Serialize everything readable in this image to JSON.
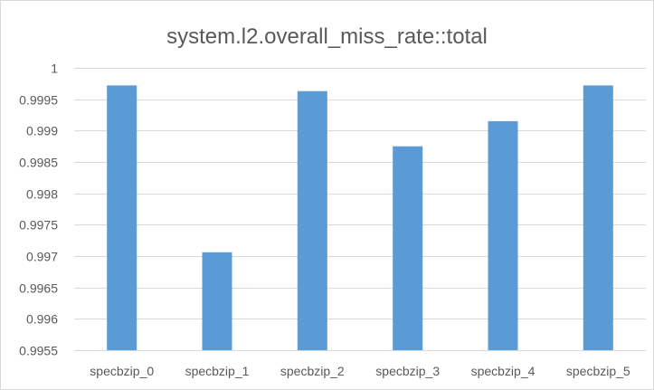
{
  "chart_data": {
    "type": "bar",
    "title": "system.l2.overall_miss_rate::total",
    "xlabel": "",
    "ylabel": "",
    "categories": [
      "specbzip_0",
      "specbzip_1",
      "specbzip_2",
      "specbzip_3",
      "specbzip_4",
      "specbzip_5"
    ],
    "values": [
      0.99972,
      0.99706,
      0.99963,
      0.99875,
      0.99915,
      0.99972
    ],
    "ylim": [
      0.9955,
      1
    ],
    "yticks": [
      "0.9955",
      "0.996",
      "0.9965",
      "0.997",
      "0.9975",
      "0.998",
      "0.9985",
      "0.999",
      "0.9995",
      "1"
    ],
    "bar_color": "#5b9bd5",
    "gridline_color": "#d9d9d9",
    "grid": true,
    "legend": "none"
  }
}
